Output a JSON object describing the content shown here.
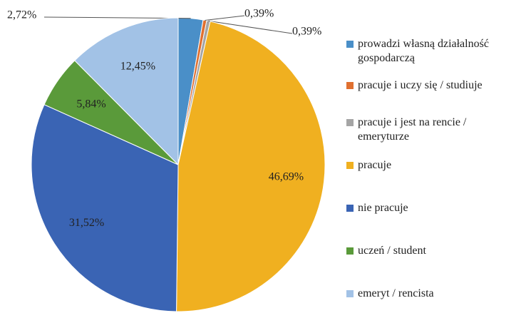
{
  "chart_data": {
    "type": "pie",
    "categories": [
      "prowadzi własną działalność gospodarczą",
      "pracuje i uczy się / studiuje",
      "pracuje i jest na rencie / emeryturze",
      "pracuje",
      "nie pracuje",
      "uczeń / student",
      "emeryt / rencista"
    ],
    "values": [
      2.72,
      0.39,
      0.39,
      46.69,
      31.52,
      5.84,
      12.45
    ],
    "value_labels": [
      "2,72%",
      "0,39%",
      "0,39%",
      "46,69%",
      "31,52%",
      "5,84%",
      "12,45%"
    ],
    "colors": [
      "#4a8fc8",
      "#e07030",
      "#a5a5a5",
      "#f0b020",
      "#3a64b4",
      "#5a9a3a",
      "#a2c2e6"
    ],
    "legend": "right"
  }
}
